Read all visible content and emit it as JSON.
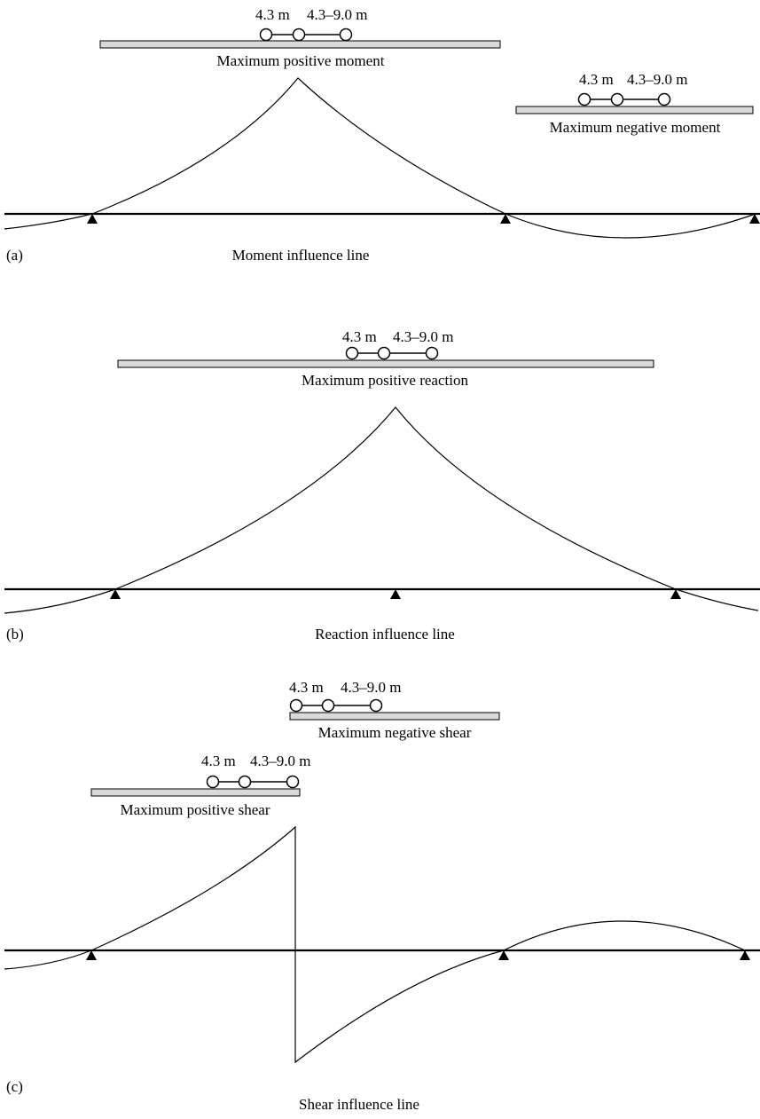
{
  "panel_a": {
    "tag": "(a)",
    "caption": "Moment influence line",
    "positive_load": {
      "label": "Maximum positive moment",
      "spacing_1": "4.3 m",
      "spacing_2": "4.3–9.0 m"
    },
    "negative_load": {
      "label": "Maximum negative moment",
      "spacing_1": "4.3 m",
      "spacing_2": "4.3–9.0 m"
    }
  },
  "panel_b": {
    "tag": "(b)",
    "caption": "Reaction influence line",
    "positive_load": {
      "label": "Maximum positive reaction",
      "spacing_1": "4.3 m",
      "spacing_2": "4.3–9.0 m"
    }
  },
  "panel_c": {
    "tag": "(c)",
    "caption": "Shear influence line",
    "negative_load": {
      "label": "Maximum negative shear",
      "spacing_1": "4.3 m",
      "spacing_2": "4.3–9.0 m"
    },
    "positive_load": {
      "label": "Maximum positive shear",
      "spacing_1": "4.3 m",
      "spacing_2": "4.3–9.0 m"
    }
  }
}
